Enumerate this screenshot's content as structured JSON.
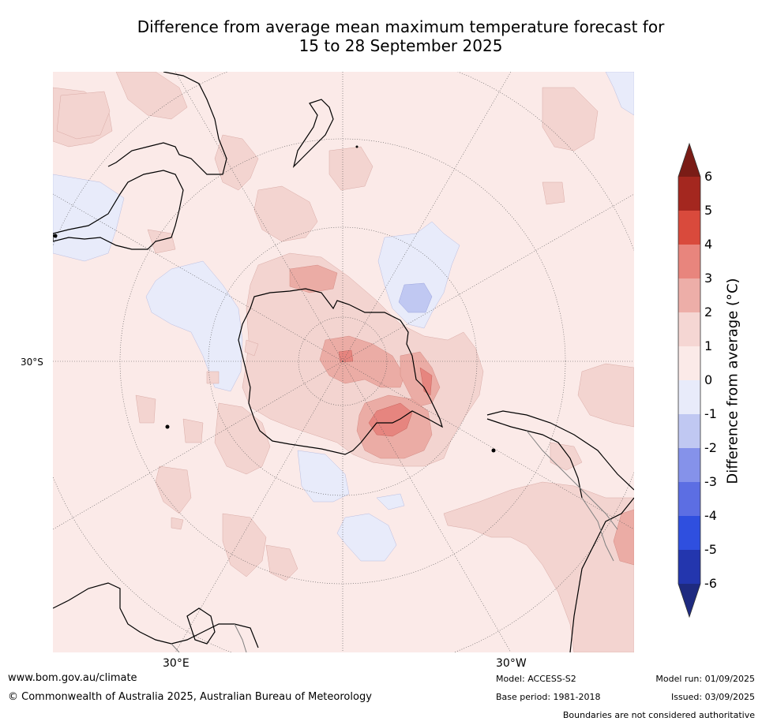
{
  "title_line1": "Difference from average mean maximum temperature forecast for",
  "title_line2": "15 to 28 September 2025",
  "map": {
    "projection": "south-polar-stereographic",
    "lat_label": "30°S",
    "lon_labels": [
      "30°E",
      "30°W"
    ],
    "ocean_color": "#fbeae8",
    "anomaly_color_warm1": "#f3d4d0",
    "anomaly_color_warm2": "#ebaca5",
    "anomaly_color_warm3": "#e6857f",
    "anomaly_color_cool1": "#e8ebfa",
    "anomaly_color_cool2": "#c0c8f2"
  },
  "colorbar": {
    "label": "Difference from average (°C)",
    "ticks": [
      "6",
      "5",
      "4",
      "3",
      "2",
      "1",
      "0",
      "-1",
      "-2",
      "-3",
      "-4",
      "-5",
      "-6"
    ],
    "colors": [
      "#a4271f",
      "#d94a3c",
      "#e8857d",
      "#edaea8",
      "#f5d6d3",
      "#fbeae8",
      "#e8ebfa",
      "#c0c8f2",
      "#8592ea",
      "#5c6ee3",
      "#2f4fdf",
      "#2336ae"
    ],
    "top_arrow_color": "#7a1c16",
    "bottom_arrow_color": "#1e2a80"
  },
  "footer": {
    "website": "www.bom.gov.au/climate",
    "copyright": "© Commonwealth of Australia 2025, Australian Bureau of Meteorology",
    "model": "Model: ACCESS-S2",
    "base_period": "Base period: 1981-2018",
    "model_run": "Model run: 01/09/2025",
    "issued": "Issued: 03/09/2025",
    "disclaimer": "Boundaries are not considered authoritative"
  }
}
